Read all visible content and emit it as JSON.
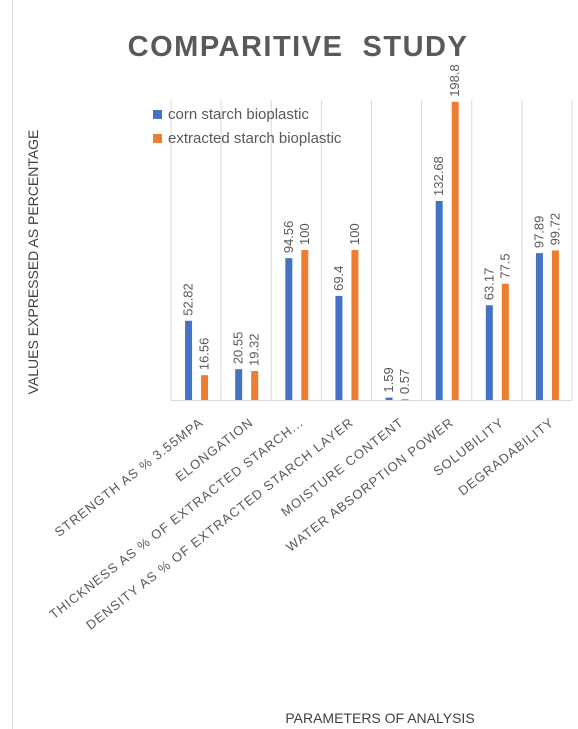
{
  "chart_data": {
    "type": "bar",
    "title": "COMPARITIVE  STUDY",
    "xlabel": "PARAMETERS OF ANALYSIS",
    "ylabel": "VALUES EXPRESSED AS PERCENTAGE",
    "categories": [
      "STRENGTH AS % 3.55MPA",
      "ELONGATION",
      "THICKNESS AS % OF EXTRACTED STARCH...",
      "DENSITY AS % OF EXTRACTED STARCH LAYER",
      "MOISTURE CONTENT",
      "WATER ABSORPTION POWER",
      "SOLUBILITY",
      "DEGRADABILITY"
    ],
    "series": [
      {
        "name": "corn starch bioplastic",
        "color": "#4472C4",
        "values": [
          52.82,
          20.55,
          94.56,
          69.4,
          1.59,
          132.68,
          63.17,
          97.89
        ],
        "labels": [
          "52.82",
          "20.55",
          "94.56",
          "69.4",
          "1.59",
          "132.68",
          "63.17",
          "97.89"
        ]
      },
      {
        "name": "extracted starch bioplastic",
        "color": "#ED7D31",
        "values": [
          16.56,
          19.32,
          100,
          100,
          0.57,
          198.8,
          77.5,
          99.72
        ],
        "labels": [
          "16.56",
          "19.32",
          "100",
          "100",
          "0.57",
          "198.8",
          "77.5",
          "99.72"
        ]
      }
    ],
    "ylim": [
      0,
      200
    ],
    "grid": "vertical separators",
    "legend": "top-left"
  }
}
